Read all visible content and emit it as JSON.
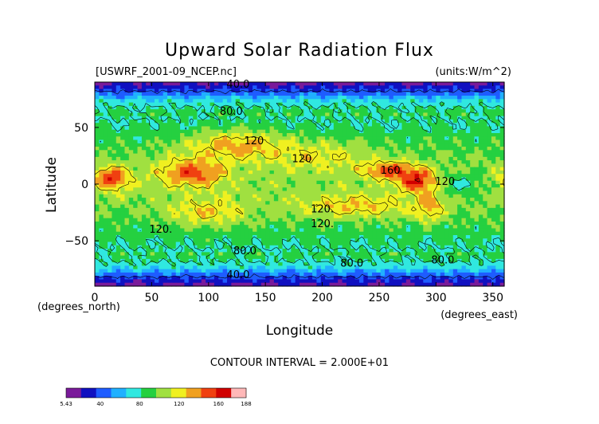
{
  "chart_data": {
    "type": "heatmap",
    "title": "Upward Solar Radiation Flux",
    "source_label": "[USWRF_2001-09_NCEP.nc]",
    "units_label": "(units:W/m^2)",
    "xlabel": "Longitude",
    "ylabel": "Latitude",
    "x_unit_label": "(degrees_east)",
    "y_unit_label": "(degrees_north)",
    "xlim": [
      0,
      360
    ],
    "ylim": [
      -90,
      90
    ],
    "x_ticks": [
      0,
      50,
      100,
      150,
      200,
      250,
      300,
      350
    ],
    "x_tick_labels": [
      "0",
      "50",
      "100",
      "150",
      "200",
      "250",
      "300",
      "350"
    ],
    "y_ticks": [
      50,
      0,
      -50
    ],
    "y_tick_labels": [
      "50",
      "0",
      "−50"
    ],
    "contour_interval_text": "CONTOUR INTERVAL = 2.000E+01",
    "contour_labels": [
      {
        "text": "40.0",
        "lon": 126,
        "lat": 88
      },
      {
        "text": "80.0",
        "lon": 120,
        "lat": 64
      },
      {
        "text": "120",
        "lon": 140,
        "lat": 38
      },
      {
        "text": "120",
        "lon": 182,
        "lat": 22
      },
      {
        "text": "160",
        "lon": 260,
        "lat": 12
      },
      {
        "text": "120",
        "lon": 308,
        "lat": 2
      },
      {
        "text": "120.",
        "lon": 200,
        "lat": -22
      },
      {
        "text": "120.",
        "lon": 200,
        "lat": -35
      },
      {
        "text": "120.",
        "lon": 58,
        "lat": -40
      },
      {
        "text": "80.0",
        "lon": 132,
        "lat": -59
      },
      {
        "text": "80.0",
        "lon": 226,
        "lat": -70
      },
      {
        "text": "80.0",
        "lon": 306,
        "lat": -67
      },
      {
        "text": "40.0",
        "lon": 126,
        "lat": -80
      }
    ],
    "colorbar": {
      "min": 5.43,
      "max": 188,
      "tick_labels": [
        "5.43",
        "40",
        "80",
        "120",
        "160",
        "188"
      ],
      "tick_values": [
        5.43,
        40,
        80,
        120,
        160,
        188
      ]
    },
    "color_levels": [
      "#7a1a9a",
      "#1010c0",
      "#1e5cff",
      "#20b0ff",
      "#30e8e0",
      "#25d040",
      "#a0e040",
      "#f0f020",
      "#f0a020",
      "#f04010",
      "#d00000",
      "#ffb8b8"
    ]
  }
}
